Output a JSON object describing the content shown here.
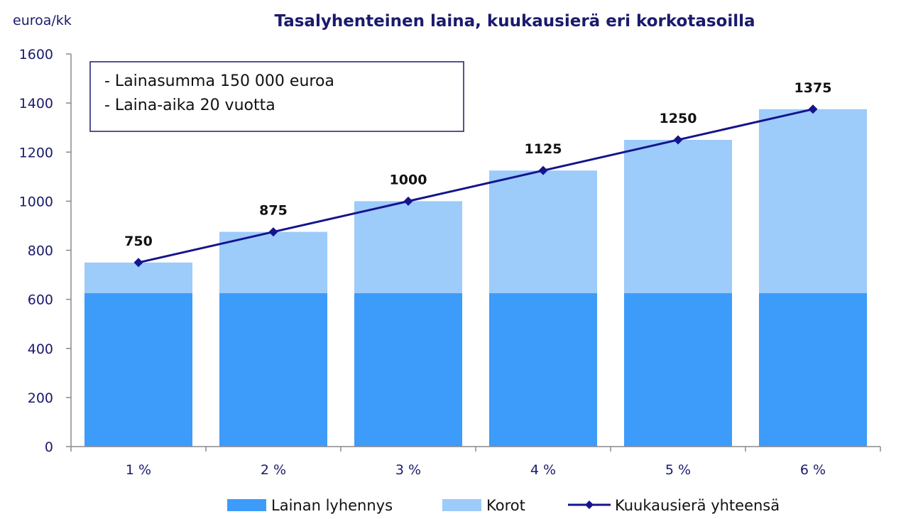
{
  "chart_data": {
    "type": "bar",
    "stacked": true,
    "title": "Tasalyhenteinen laina, kuukausierä eri korkotasoilla",
    "ylabel": "euroa/kk",
    "xlabel": "",
    "ylim": [
      0,
      1600
    ],
    "yticks": [
      "0",
      "200",
      "400",
      "600",
      "800",
      "1000",
      "1200",
      "1400",
      "1600"
    ],
    "categories": [
      "1 %",
      "2 %",
      "3 %",
      "4 %",
      "5 %",
      "6 %"
    ],
    "series": [
      {
        "name": "Lainan lyhennys",
        "type": "bar",
        "color": "#3d9bfa",
        "values": [
          625,
          625,
          625,
          625,
          625,
          625
        ]
      },
      {
        "name": "Korot",
        "type": "bar",
        "color": "#9dcbfa",
        "values": [
          125,
          250,
          375,
          500,
          625,
          750
        ]
      },
      {
        "name": "Kuukausierä yhteensä",
        "type": "line",
        "color": "#14148c",
        "marker": "diamond",
        "values": [
          750,
          875,
          1000,
          1125,
          1250,
          1375
        ]
      }
    ],
    "data_labels": [
      "750",
      "875",
      "1000",
      "1125",
      "1250",
      "1375"
    ],
    "annotation_lines": [
      "- Lainasumma 150 000 euroa",
      "- Laina-aika 20 vuotta"
    ],
    "legend_position": "bottom",
    "grid": false
  }
}
